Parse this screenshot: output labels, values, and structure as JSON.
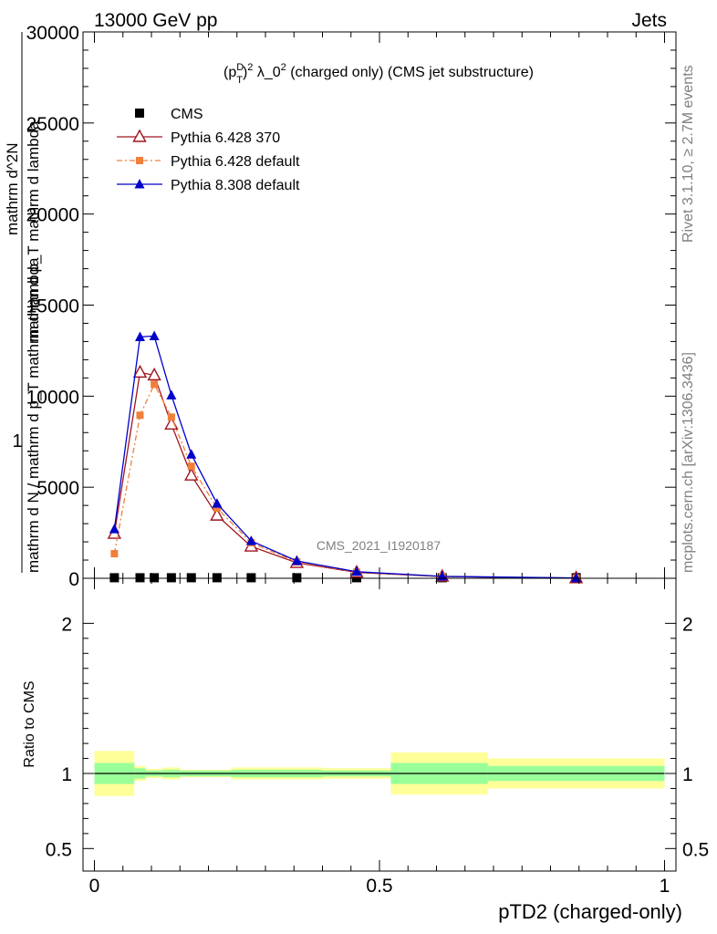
{
  "header": {
    "left": "13000 GeV pp",
    "right": "Jets"
  },
  "side": {
    "rivet": "Rivet 3.1.10, ≥ 2.7M events",
    "mcplots": "mcplots.cern.ch [arXiv:1306.3436]"
  },
  "plot_title": "(p_T^D)^2 λ_0^2 (charged only) (CMS jet substructure)",
  "watermark": "CMS_2021_I1920187",
  "chart_data": [
    {
      "type": "line",
      "title": "(p_T^D)^2 λ_0^2 (charged only) (CMS jet substructure)",
      "xlabel": "pTD2 (charged-only)",
      "ylabel": "1 / mathrm d N / mathrm d p_T mathrm d lambda ... mathrm d^2N / mathrm d p_T mathrm d lambda",
      "xlim": [
        -0.02,
        1.02
      ],
      "ylim": [
        0,
        30000
      ],
      "yticks": [
        "0",
        "5000",
        "10000",
        "15000",
        "20000",
        "25000",
        "30000"
      ],
      "xticks": [
        "0",
        "0.5",
        "1"
      ],
      "legend_position": "top-left",
      "legend": [
        "CMS",
        "Pythia 6.428 370",
        "Pythia 6.428 default",
        "Pythia 8.308 default"
      ],
      "series": [
        {
          "name": "CMS",
          "color": "#000000",
          "x": [
            0.035,
            0.08,
            0.105,
            0.135,
            0.17,
            0.215,
            0.275,
            0.355,
            0.46,
            0.61,
            0.845
          ],
          "y": [
            30,
            30,
            30,
            30,
            30,
            30,
            30,
            30,
            30,
            30,
            30
          ]
        },
        {
          "name": "Pythia 6.428 370",
          "color": "#a0141e",
          "x": [
            0.035,
            0.08,
            0.105,
            0.135,
            0.17,
            0.215,
            0.275,
            0.355,
            0.46,
            0.61,
            0.845
          ],
          "y": [
            2450,
            11300,
            11150,
            8450,
            5650,
            3450,
            1750,
            850,
            320,
            95,
            12
          ]
        },
        {
          "name": "Pythia 6.428 default",
          "color": "#f07f3a",
          "x": [
            0.035,
            0.08,
            0.105,
            0.135,
            0.17,
            0.215,
            0.275,
            0.355,
            0.46,
            0.61,
            0.845
          ],
          "y": [
            1350,
            8950,
            10650,
            8850,
            6150,
            3850,
            1950,
            900,
            340,
            100,
            12
          ]
        },
        {
          "name": "Pythia 8.308 default",
          "color": "#0000cc",
          "x": [
            0.035,
            0.08,
            0.105,
            0.135,
            0.17,
            0.215,
            0.275,
            0.355,
            0.46,
            0.61,
            0.845
          ],
          "y": [
            2700,
            13250,
            13300,
            10050,
            6800,
            4100,
            2050,
            950,
            360,
            105,
            13
          ]
        }
      ]
    },
    {
      "type": "area",
      "ylabel": "Ratio to CMS",
      "xlabel": "pTD2 (charged-only)",
      "xlim": [
        -0.02,
        1.02
      ],
      "ylim": [
        0.35,
        2.3
      ],
      "yticks": [
        "0.5",
        "1",
        "2"
      ],
      "xticks": [
        "0",
        "0.5",
        "1"
      ],
      "bins": [
        {
          "lo": 0.0,
          "hi": 0.07,
          "stat_lo": 0.93,
          "stat_hi": 1.07,
          "tot_lo": 0.85,
          "tot_hi": 1.15
        },
        {
          "lo": 0.07,
          "hi": 0.09,
          "stat_lo": 0.965,
          "stat_hi": 1.035,
          "tot_lo": 0.95,
          "tot_hi": 1.05
        },
        {
          "lo": 0.09,
          "hi": 0.12,
          "stat_lo": 0.98,
          "stat_hi": 1.02,
          "tot_lo": 0.97,
          "tot_hi": 1.03
        },
        {
          "lo": 0.12,
          "hi": 0.15,
          "stat_lo": 0.975,
          "stat_hi": 1.025,
          "tot_lo": 0.96,
          "tot_hi": 1.04
        },
        {
          "lo": 0.15,
          "hi": 0.24,
          "stat_lo": 0.98,
          "stat_hi": 1.02,
          "tot_lo": 0.975,
          "tot_hi": 1.025
        },
        {
          "lo": 0.24,
          "hi": 0.4,
          "stat_lo": 0.975,
          "stat_hi": 1.025,
          "tot_lo": 0.96,
          "tot_hi": 1.04
        },
        {
          "lo": 0.4,
          "hi": 0.52,
          "stat_lo": 0.98,
          "stat_hi": 1.02,
          "tot_lo": 0.965,
          "tot_hi": 1.035
        },
        {
          "lo": 0.52,
          "hi": 0.69,
          "stat_lo": 0.93,
          "stat_hi": 1.07,
          "tot_lo": 0.86,
          "tot_hi": 1.14
        },
        {
          "lo": 0.69,
          "hi": 1.0,
          "stat_lo": 0.95,
          "stat_hi": 1.05,
          "tot_lo": 0.9,
          "tot_hi": 1.1
        }
      ],
      "colors": {
        "stat": "#99ff99",
        "total": "#ffff99"
      },
      "reference": 1
    }
  ]
}
